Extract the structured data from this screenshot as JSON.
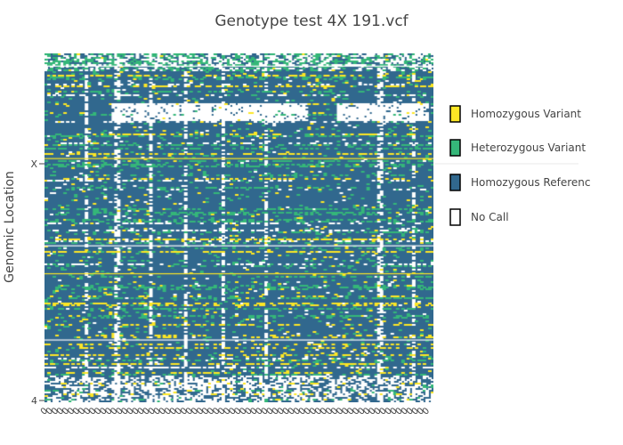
{
  "chart_data": {
    "type": "heatmap",
    "title": "Genotype test 4X 191.vcf",
    "ylabel": "Genomic Location",
    "xlabel": "",
    "y_ticks": [
      "X",
      "4"
    ],
    "x_tick_label": "0",
    "legend": [
      "Homozygous Variant",
      "Heterozygous Variant",
      "Homozygous Referenc",
      "No Call"
    ],
    "legend_placement": "right",
    "grid": false,
    "colors": {
      "homozygous_variant": "#fde725",
      "heterozygous_variant": "#35b779",
      "homozygous_reference": "#31688e",
      "no_call": "#ffffff"
    }
  }
}
